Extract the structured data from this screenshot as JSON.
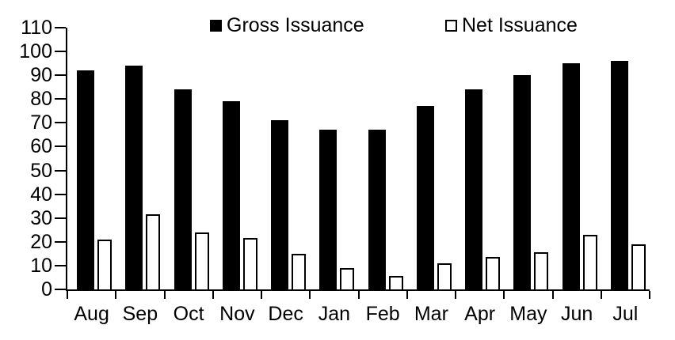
{
  "chart_data": {
    "type": "bar",
    "title": "",
    "categories": [
      "Aug",
      "Sep",
      "Oct",
      "Nov",
      "Dec",
      "Jan",
      "Feb",
      "Mar",
      "Apr",
      "May",
      "Jun",
      "Jul"
    ],
    "series": [
      {
        "name": "Gross Issuance",
        "fill": "#000000",
        "values": [
          92,
          94,
          84,
          79,
          71,
          67,
          67,
          77,
          84,
          90,
          95,
          96
        ]
      },
      {
        "name": "Net Issuance",
        "fill": "#ffffff",
        "stroke": "#000000",
        "values": [
          21,
          31.5,
          24,
          21.5,
          15,
          9,
          5.5,
          11,
          13.5,
          15.5,
          23,
          19
        ]
      }
    ],
    "xlabel": "",
    "ylabel": "",
    "ylim": [
      0,
      110
    ],
    "yticks": [
      0,
      10,
      20,
      30,
      40,
      50,
      60,
      70,
      80,
      90,
      100,
      110
    ],
    "grid": "off",
    "legend_position": "top"
  },
  "colors": {
    "background": "#ffffff",
    "axis": "#000000",
    "gross_fill": "#000000",
    "net_fill": "#ffffff",
    "net_stroke": "#000000"
  }
}
